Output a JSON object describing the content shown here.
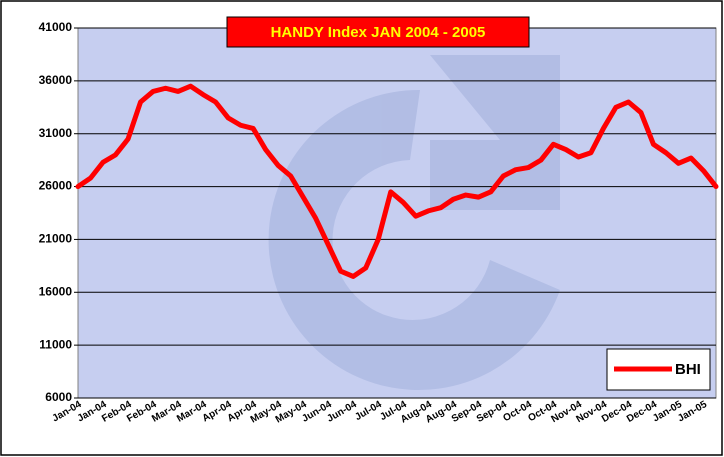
{
  "chart_data": {
    "type": "line",
    "title": "HANDY Index JAN 2004 - 2005",
    "categories": [
      "Jan-04",
      null,
      "Jan-04",
      null,
      "Feb-04",
      null,
      "Feb-04",
      null,
      "Mar-04",
      null,
      "Mar-04",
      null,
      "Apr-04",
      null,
      "Apr-04",
      null,
      "May-04",
      null,
      "May-04",
      null,
      "Jun-04",
      null,
      "Jun-04",
      null,
      "Jul-04",
      null,
      "Jul-04",
      null,
      "Aug-04",
      null,
      "Aug-04",
      null,
      "Sep-04",
      null,
      "Sep-04",
      null,
      "Oct-04",
      null,
      "Oct-04",
      null,
      "Nov-04",
      null,
      "Nov-04",
      null,
      "Dec-04",
      null,
      "Dec-04",
      null,
      "Jan-05",
      null,
      "Jan-05",
      null
    ],
    "series": [
      {
        "name": "BHI",
        "color": "#ff0000",
        "values": [
          26000,
          26800,
          28300,
          29000,
          30500,
          34000,
          35000,
          35300,
          35000,
          35500,
          34700,
          34000,
          32500,
          31800,
          31500,
          29500,
          28000,
          27000,
          25000,
          23000,
          20500,
          18000,
          17500,
          18300,
          21000,
          25500,
          24500,
          23200,
          23700,
          24000,
          24800,
          25200,
          25000,
          25500,
          27000,
          27600,
          27800,
          28500,
          30000,
          29500,
          28800,
          29200,
          31500,
          33500,
          34000,
          33000,
          30000,
          29200,
          28200,
          28700,
          27500,
          26000
        ]
      }
    ],
    "ylim": [
      6000,
      41000
    ],
    "yticks": [
      6000,
      11000,
      16000,
      21000,
      26000,
      31000,
      36000,
      41000
    ],
    "grid": true,
    "legend": "bottom-right"
  }
}
